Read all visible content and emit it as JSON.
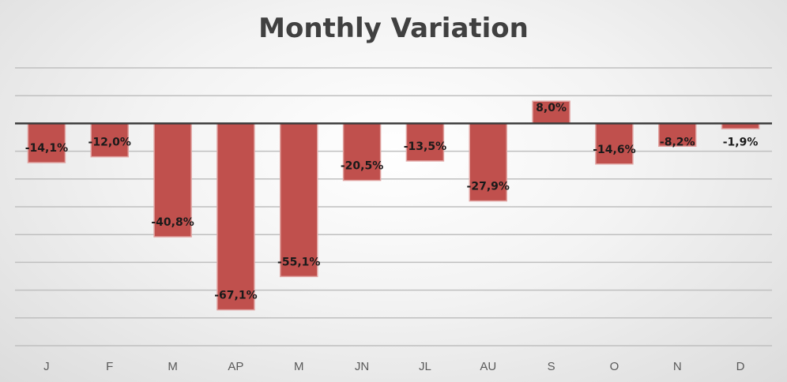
{
  "chart_data": {
    "type": "bar",
    "title": "Monthly Variation",
    "xlabel": "",
    "ylabel": "",
    "categories": [
      "J",
      "F",
      "M",
      "AP",
      "M",
      "JN",
      "JL",
      "AU",
      "S",
      "O",
      "N",
      "D"
    ],
    "values": [
      -14.1,
      -12.0,
      -40.8,
      -67.1,
      -55.1,
      -20.5,
      -13.5,
      -27.9,
      8.0,
      -14.6,
      -8.2,
      -1.9
    ],
    "data_labels": [
      "-14,1%",
      "-12,0%",
      "-40,8%",
      "-67,1%",
      "-55,1%",
      "-20,5%",
      "-13,5%",
      "-27,9%",
      "8,0%",
      "-14,6%",
      "-8,2%",
      "-1,9%"
    ],
    "ylim": [
      -80,
      20
    ],
    "grid": true,
    "legend": "none",
    "colors": {
      "bar_fill": "#c0504d",
      "bar_edge": "#e0a3a1",
      "gridline": "#bfbfbf",
      "zero_line": "#3b3b3b"
    }
  }
}
